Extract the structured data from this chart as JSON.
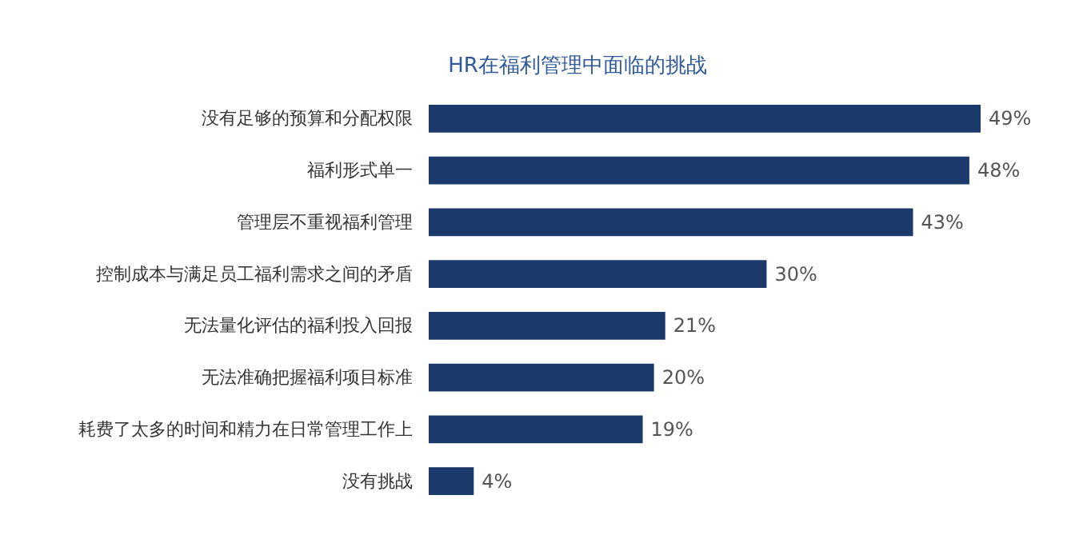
{
  "chart_data": {
    "type": "bar",
    "orientation": "horizontal",
    "title": "HR在福利管理中面临的挑战",
    "categories": [
      "没有足够的预算和分配权限",
      "福利形式单一",
      "管理层不重视福利管理",
      "控制成本与满足员工福利需求之间的矛盾",
      "无法量化评估的福利投入回报",
      "无法准确把握福利项目标准",
      "耗费了太多的时间和精力在日常管理工作上",
      "没有挑战"
    ],
    "values": [
      49,
      48,
      43,
      30,
      21,
      20,
      19,
      4
    ],
    "value_labels": [
      "49%",
      "48%",
      "43%",
      "30%",
      "21%",
      "20%",
      "19%",
      "4%"
    ],
    "color": "#1b3a6b"
  }
}
